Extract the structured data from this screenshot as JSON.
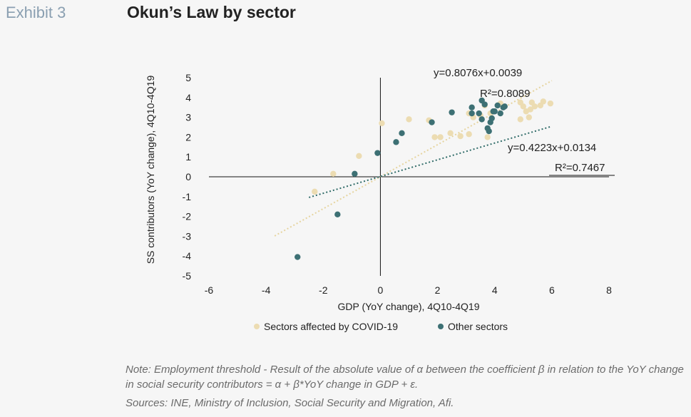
{
  "header": {
    "exhibit": "Exhibit 3",
    "title": "Okun’s Law by sector"
  },
  "chart_data": {
    "type": "scatter",
    "xlabel": "GDP (YoY change), 4Q10-4Q19",
    "ylabel": "SS contributors (YoY change), 4Q10-4Q19",
    "xlim": [
      -6,
      8
    ],
    "ylim": [
      -5,
      5
    ],
    "xticks": [
      "-6",
      "-4",
      "-2",
      "0",
      "2",
      "4",
      "6",
      "8"
    ],
    "yticks": [
      "5",
      "4",
      "3",
      "2",
      "1",
      "0",
      "-1",
      "-2",
      "-3",
      "-4",
      "-5"
    ],
    "legend_position": "bottom",
    "series": [
      {
        "name": "Sectors affected by COVID-19",
        "color": "#ecdcb2",
        "trendline": {
          "equation": "y=0.8076x+0.0039",
          "r2": "R²=0.8089",
          "slope": 0.8076,
          "intercept": 0.0039,
          "x_range": [
            -3.7,
            6.0
          ]
        },
        "points": [
          [
            -2.3,
            -0.75
          ],
          [
            -1.65,
            0.15
          ],
          [
            -0.75,
            1.05
          ],
          [
            0.05,
            2.7
          ],
          [
            1.0,
            2.9
          ],
          [
            1.7,
            2.85
          ],
          [
            1.9,
            2.0
          ],
          [
            2.1,
            2.0
          ],
          [
            2.45,
            2.2
          ],
          [
            2.8,
            2.05
          ],
          [
            3.1,
            2.15
          ],
          [
            3.1,
            3.2
          ],
          [
            3.25,
            3.0
          ],
          [
            3.5,
            3.1
          ],
          [
            3.65,
            3.6
          ],
          [
            3.75,
            2.0
          ],
          [
            3.85,
            3.2
          ],
          [
            4.1,
            3.6
          ],
          [
            4.2,
            3.7
          ],
          [
            4.9,
            2.9
          ],
          [
            4.9,
            3.75
          ],
          [
            5.0,
            3.55
          ],
          [
            5.1,
            3.3
          ],
          [
            5.2,
            3.0
          ],
          [
            5.25,
            3.4
          ],
          [
            5.3,
            3.75
          ],
          [
            5.4,
            3.55
          ],
          [
            5.6,
            3.6
          ],
          [
            5.7,
            3.8
          ],
          [
            5.95,
            3.7
          ]
        ]
      },
      {
        "name": "Other sectors",
        "color": "#3d7074",
        "trendline": {
          "equation": "y=0.4223x+0.0134",
          "r2": "R²=0.7467",
          "slope": 0.4223,
          "intercept": 0.0134,
          "x_range": [
            -2.5,
            6.0
          ]
        },
        "points": [
          [
            -2.9,
            -4.05
          ],
          [
            -1.5,
            -1.9
          ],
          [
            -0.9,
            0.15
          ],
          [
            -0.1,
            1.2
          ],
          [
            0.55,
            1.75
          ],
          [
            0.75,
            2.2
          ],
          [
            1.8,
            2.75
          ],
          [
            2.5,
            3.25
          ],
          [
            3.2,
            3.5
          ],
          [
            3.2,
            3.2
          ],
          [
            3.45,
            3.2
          ],
          [
            3.55,
            3.85
          ],
          [
            3.65,
            3.65
          ],
          [
            3.55,
            2.9
          ],
          [
            3.75,
            2.45
          ],
          [
            3.8,
            2.3
          ],
          [
            3.85,
            2.75
          ],
          [
            3.9,
            2.95
          ],
          [
            3.95,
            3.3
          ],
          [
            4.0,
            3.3
          ],
          [
            4.1,
            3.6
          ],
          [
            4.2,
            3.2
          ],
          [
            4.3,
            3.5
          ],
          [
            4.35,
            3.55
          ]
        ]
      }
    ]
  },
  "footer": {
    "note": "Note: Employment threshold - Result of the absolute value of α between the coefficient β in relation to the YoY change in social security contributors = α + β*YoY change in GDP + ε.",
    "sources": "Sources: INE, Ministry of Inclusion, Social Security and Migration, Afi."
  }
}
